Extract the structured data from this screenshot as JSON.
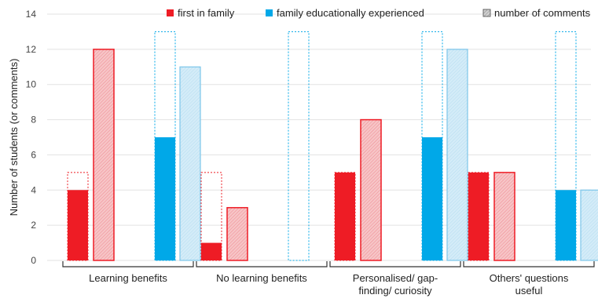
{
  "chart_data": {
    "type": "bar",
    "ylabel": "Number of students (or comments)",
    "ylim": [
      0,
      14
    ],
    "yticks": [
      0,
      2,
      4,
      6,
      8,
      10,
      12,
      14
    ],
    "grid": true,
    "legend_position": "top-right",
    "categories": [
      [
        "Learning benefits"
      ],
      [
        "No learning benefits"
      ],
      [
        "Personalised/ gap-",
        "finding/ curiosity"
      ],
      [
        "Others' questions",
        "useful"
      ]
    ],
    "series": [
      {
        "name": "first in family",
        "group": "first",
        "students": [
          4,
          1,
          5,
          5
        ],
        "comments": [
          12,
          3,
          8,
          5
        ],
        "totals": [
          5,
          5,
          5,
          5
        ]
      },
      {
        "name": "family  educationally experienced",
        "group": "experienced",
        "students": [
          7,
          0,
          7,
          4
        ],
        "comments": [
          11,
          0,
          12,
          4
        ],
        "totals": [
          13,
          13,
          13,
          13
        ]
      }
    ],
    "legend": [
      {
        "label": "first in family",
        "color": "#ee1c25",
        "style": "solid"
      },
      {
        "label": "family  educationally experienced",
        "color": "#00a8e8",
        "style": "solid"
      },
      {
        "label": "number of comments",
        "color": "#888888",
        "style": "hatched"
      }
    ],
    "colors": {
      "first": "#ee1c25",
      "first_hatch_fill": "#f7c5c7",
      "experienced": "#00a8e8",
      "experienced_light": "#d4ecf8",
      "grid": "#e2e2e2"
    }
  }
}
